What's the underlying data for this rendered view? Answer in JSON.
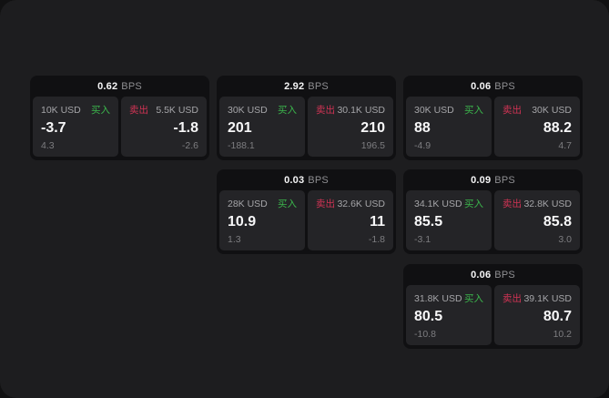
{
  "labels": {
    "bps_unit": "BPS",
    "buy": "买入",
    "sell": "卖出"
  },
  "colors": {
    "buy_green": "#3bb64c",
    "sell_red": "#d13354",
    "canvas_bg": "#1d1d1f",
    "card_bg": "#101012",
    "panel_bg": "#242427"
  },
  "cards": [
    {
      "bps": "0.62",
      "col": 1,
      "row": 1,
      "buy": {
        "amount": "10K USD",
        "price": "-3.7",
        "sub": "4.3"
      },
      "sell": {
        "amount": "5.5K USD",
        "price": "-1.8",
        "sub": "-2.6"
      }
    },
    {
      "bps": "2.92",
      "col": 2,
      "row": 1,
      "buy": {
        "amount": "30K USD",
        "price": "201",
        "sub": "-188.1"
      },
      "sell": {
        "amount": "30.1K USD",
        "price": "210",
        "sub": "196.5"
      }
    },
    {
      "bps": "0.06",
      "col": 3,
      "row": 1,
      "buy": {
        "amount": "30K USD",
        "price": "88",
        "sub": "-4.9"
      },
      "sell": {
        "amount": "30K USD",
        "price": "88.2",
        "sub": "4.7"
      }
    },
    {
      "bps": "0.03",
      "col": 2,
      "row": 2,
      "buy": {
        "amount": "28K USD",
        "price": "10.9",
        "sub": "1.3"
      },
      "sell": {
        "amount": "32.6K USD",
        "price": "11",
        "sub": "-1.8"
      }
    },
    {
      "bps": "0.09",
      "col": 3,
      "row": 2,
      "buy": {
        "amount": "34.1K USD",
        "price": "85.5",
        "sub": "-3.1"
      },
      "sell": {
        "amount": "32.8K USD",
        "price": "85.8",
        "sub": "3.0"
      }
    },
    {
      "bps": "0.06",
      "col": 3,
      "row": 3,
      "buy": {
        "amount": "31.8K USD",
        "price": "80.5",
        "sub": "-10.8"
      },
      "sell": {
        "amount": "39.1K USD",
        "price": "80.7",
        "sub": "10.2"
      }
    }
  ]
}
